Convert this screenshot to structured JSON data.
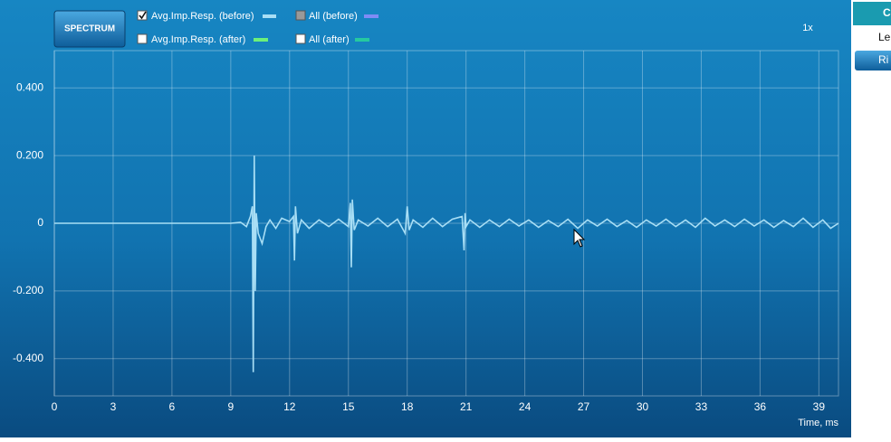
{
  "ui": {
    "spectrum_button": "SPECTRUM",
    "zoom": "1x",
    "other_legend": [
      {
        "label": "All (before)",
        "color": "#7f8cf5",
        "state": "partial"
      },
      {
        "label": "Avg.Imp.Resp. (after)",
        "color": "#6cf07a",
        "state": "unchecked"
      },
      {
        "label": "All (after)",
        "color": "#25c9a0",
        "state": "unchecked"
      }
    ],
    "side_tabs": [
      "C",
      "Le",
      "Ri"
    ]
  },
  "chart_data": {
    "type": "line",
    "x_label": "Time, ms",
    "xlim": [
      0,
      40
    ],
    "ylim": [
      -0.51,
      0.51
    ],
    "xticks": [
      0,
      3,
      6,
      9,
      12,
      15,
      18,
      21,
      24,
      27,
      30,
      33,
      36,
      39
    ],
    "yticks": [
      {
        "value": 0.4,
        "label": "0.400"
      },
      {
        "value": 0.2,
        "label": "0.200"
      },
      0,
      {
        "value": -0.2,
        "label": "-0.200"
      },
      {
        "value": -0.4,
        "label": "-0.400"
      }
    ],
    "grid": true,
    "x": [
      0,
      9,
      9.5,
      9.8,
      10.0,
      10.1,
      10.15,
      10.2,
      10.25,
      10.3,
      10.4,
      10.6,
      10.8,
      11.0,
      11.3,
      11.6,
      12.0,
      12.2,
      12.25,
      12.3,
      12.4,
      12.6,
      13.0,
      13.5,
      14.0,
      14.5,
      15.0,
      15.1,
      15.15,
      15.2,
      15.3,
      15.5,
      16.0,
      16.5,
      17.0,
      17.5,
      17.9,
      18.0,
      18.1,
      18.3,
      18.8,
      19.3,
      19.8,
      20.3,
      20.8,
      20.9,
      20.95,
      21.0,
      21.2,
      21.7,
      22.2,
      22.7,
      23.2,
      23.7,
      24.2,
      24.7,
      25.2,
      25.7,
      26.2,
      26.7,
      27.2,
      27.7,
      28.2,
      28.7,
      29.2,
      29.7,
      30.2,
      30.7,
      31.2,
      31.7,
      32.2,
      32.7,
      33.2,
      33.7,
      34.2,
      34.7,
      35.2,
      35.7,
      36.2,
      36.7,
      37.2,
      37.7,
      38.2,
      38.7,
      39.2,
      39.6,
      40
    ],
    "series": [
      {
        "name": "Avg.Imp.Resp. (before)",
        "color": "#a8def5",
        "checked": true,
        "values": [
          0,
          0,
          0.003,
          -0.01,
          0.02,
          0.05,
          -0.44,
          0.2,
          -0.2,
          0.03,
          -0.03,
          -0.06,
          -0.01,
          0.01,
          -0.015,
          0.015,
          0.005,
          0.02,
          -0.11,
          0.05,
          -0.03,
          0.01,
          -0.015,
          0.01,
          -0.01,
          0.012,
          -0.01,
          0.06,
          -0.13,
          0.07,
          -0.02,
          0.01,
          -0.008,
          0.015,
          -0.01,
          0.012,
          -0.03,
          0.05,
          -0.02,
          0.01,
          -0.012,
          0.015,
          -0.01,
          0.012,
          0.02,
          -0.08,
          0.03,
          -0.01,
          0.01,
          -0.012,
          0.01,
          -0.01,
          0.012,
          -0.008,
          0.01,
          -0.012,
          0.008,
          -0.01,
          0.012,
          -0.015,
          0.01,
          -0.008,
          0.012,
          -0.01,
          0.008,
          -0.012,
          0.01,
          -0.008,
          0.012,
          -0.01,
          0.01,
          -0.012,
          0.015,
          -0.008,
          0.01,
          -0.01,
          0.012,
          -0.008,
          0.01,
          -0.012,
          0.008,
          -0.01,
          0.015,
          -0.012,
          0.01,
          -0.015,
          0
        ]
      }
    ]
  }
}
